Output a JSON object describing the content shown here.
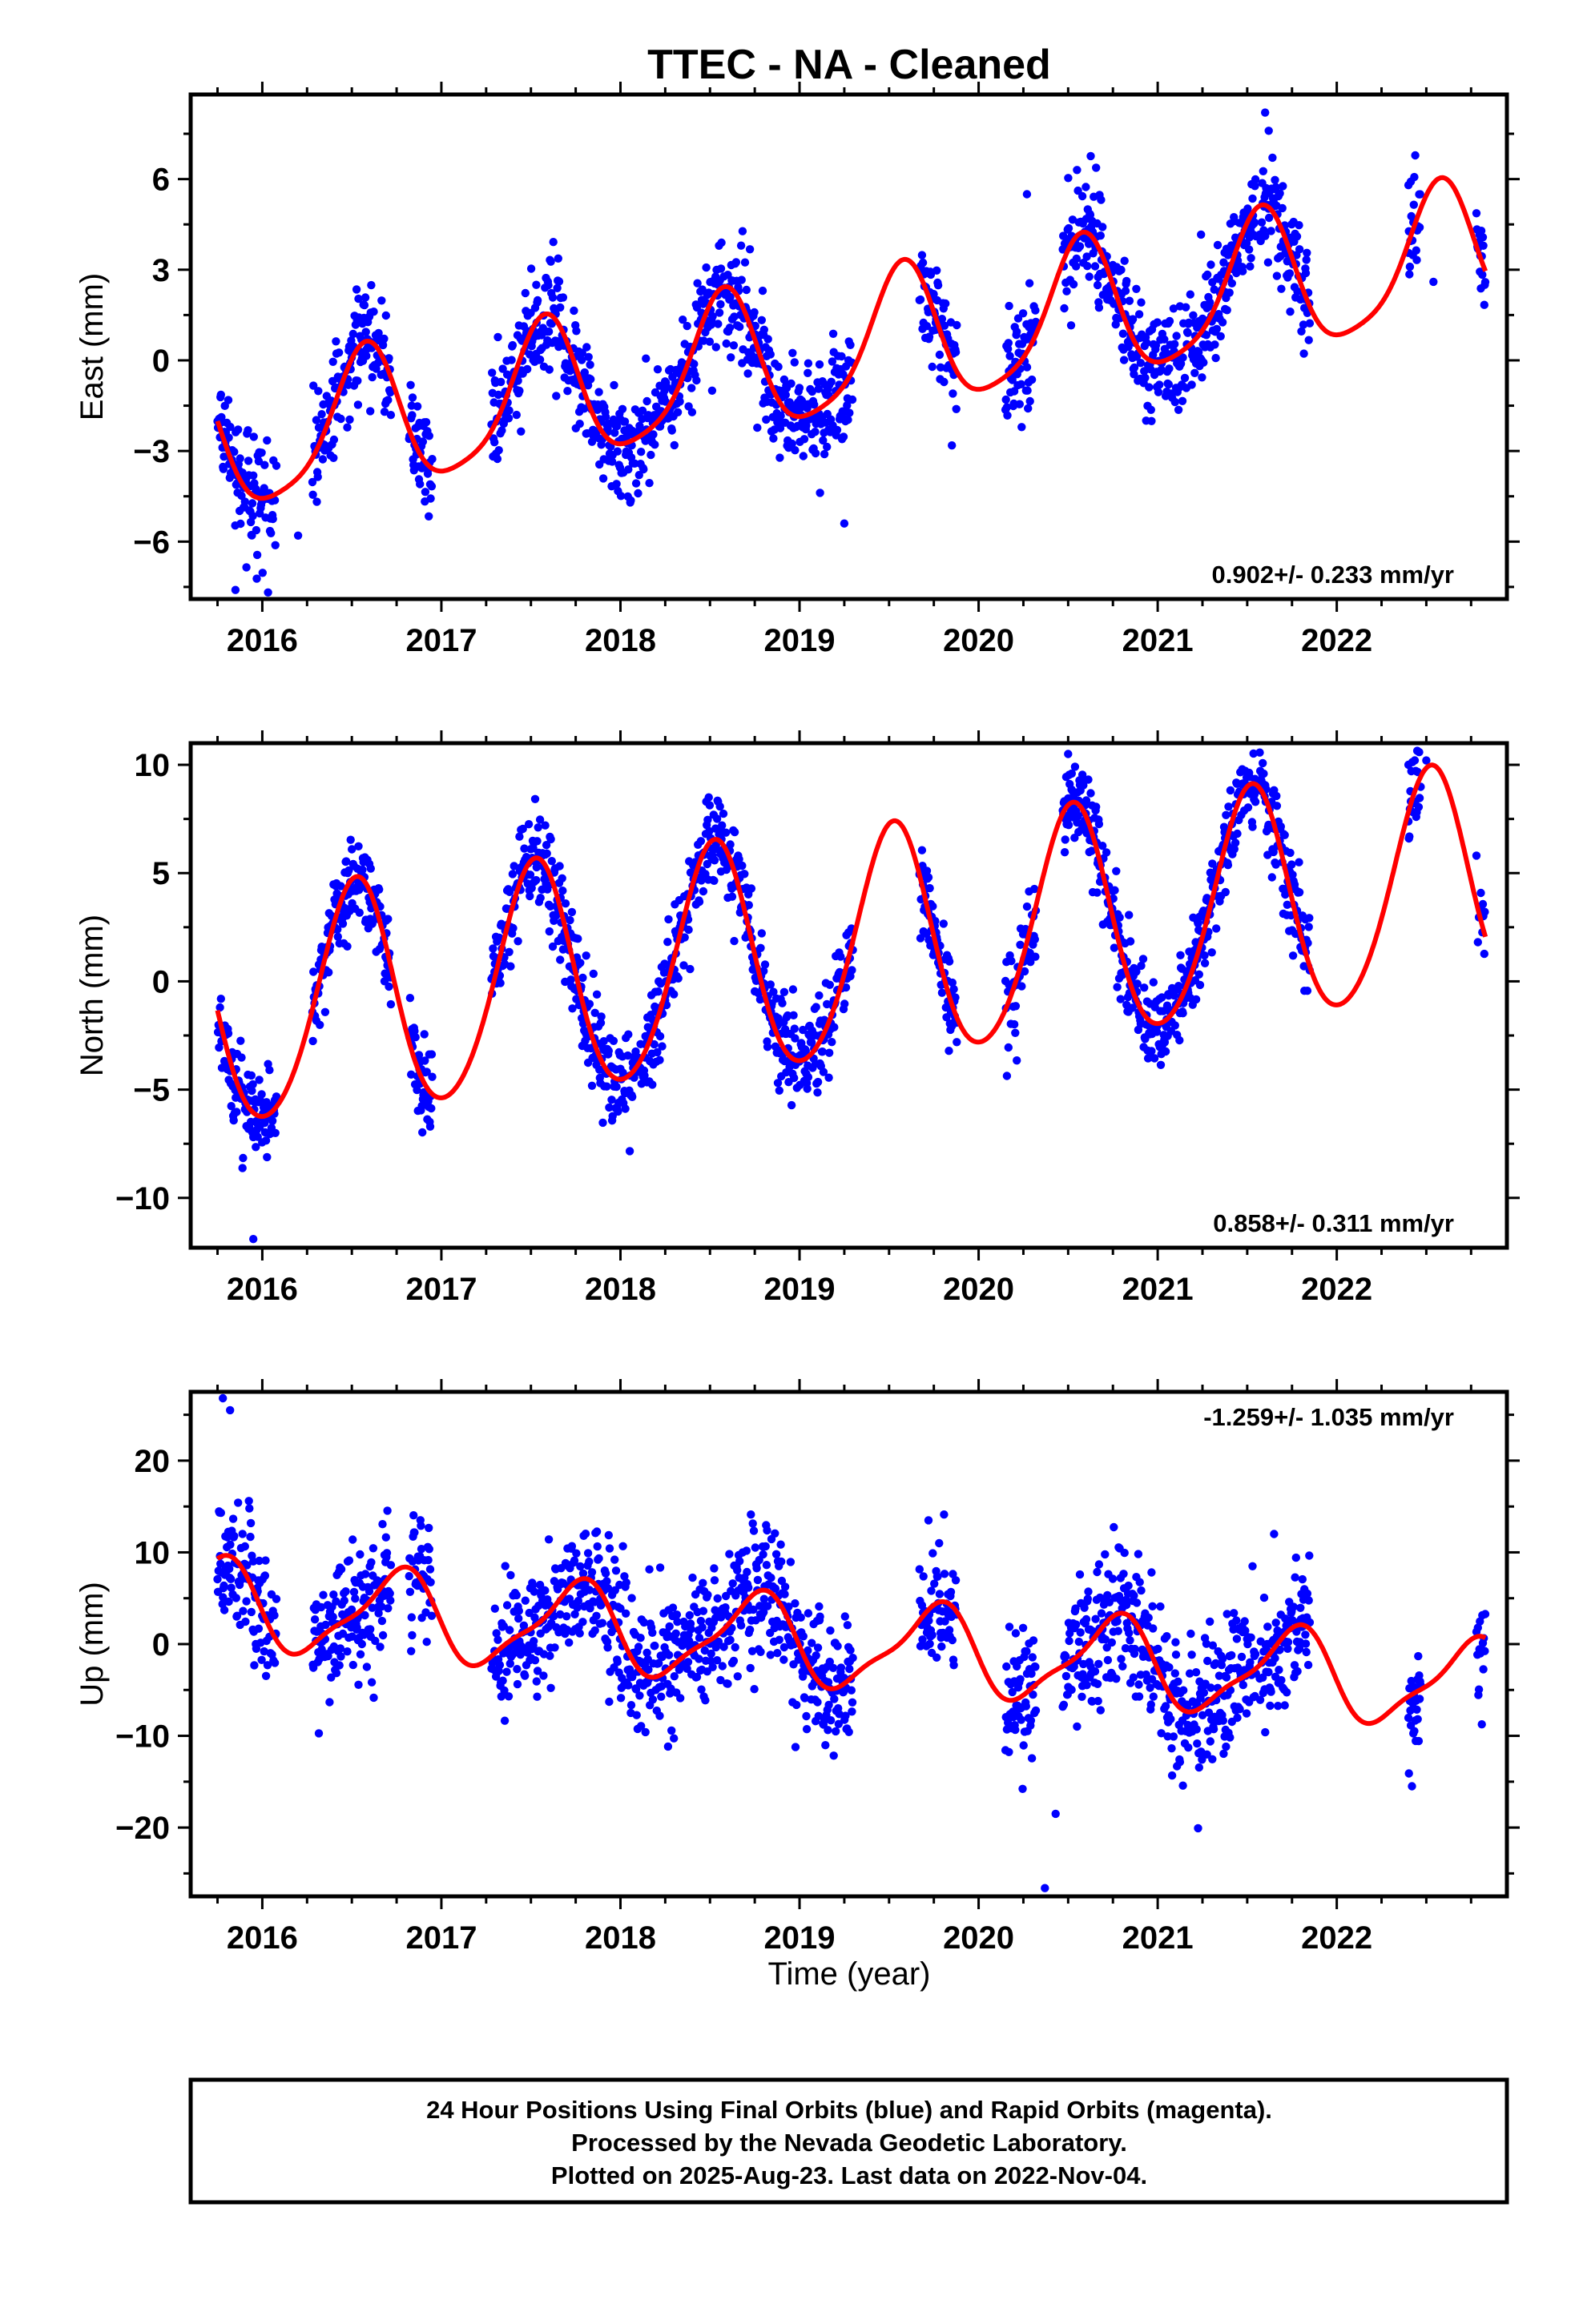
{
  "page": {
    "title": "TTEC  - NA - Cleaned",
    "footer": [
      "24 Hour Positions Using Final Orbits (blue) and Rapid Orbits (magenta).",
      "Processed by the Nevada Geodetic Laboratory.",
      "Plotted on 2025-Aug-23. Last data on 2022-Nov-04."
    ]
  },
  "colors": {
    "data_points": "#0000ff",
    "model_fit": "#ff0000",
    "frame": "#000000"
  },
  "chart_data": [
    {
      "type": "scatter",
      "name": "east-panel",
      "ylabel": "East (mm)",
      "xlabel": "",
      "xlim": [
        2015.6,
        2022.95
      ],
      "ylim": [
        -7.9,
        8.8
      ],
      "xticks": [
        2016,
        2017,
        2018,
        2019,
        2020,
        2021,
        2022
      ],
      "yticks": [
        -6,
        -3,
        0,
        3,
        6
      ],
      "rate_text": "0.902+/- 0.233 mm/yr",
      "rate_position": "bottom-right",
      "trend": {
        "t0": 2015.75,
        "y0": -2.85,
        "slope": 0.902
      },
      "seasonal": [
        {
          "period": 1.0,
          "amp": 2.3,
          "peak": 2016.57
        },
        {
          "period": 0.5,
          "amp": 0.45,
          "peak": 2016.6
        }
      ],
      "scatter_sd": 0.9,
      "data_segments": [
        [
          2015.75,
          2016.08
        ],
        [
          2016.28,
          2016.72
        ],
        [
          2016.82,
          2016.95
        ],
        [
          2017.28,
          2019.3
        ],
        [
          2019.67,
          2019.88
        ],
        [
          2020.15,
          2020.32
        ],
        [
          2020.47,
          2021.55
        ],
        [
          2021.57,
          2021.85
        ],
        [
          2022.4,
          2022.47
        ],
        [
          2022.78,
          2022.83
        ]
      ],
      "fit_range": [
        2015.75,
        2022.83
      ],
      "outliers": [
        [
          2016.2,
          -5.8
        ],
        [
          2015.85,
          -7.6
        ],
        [
          2017.53,
          2.5
        ],
        [
          2019.25,
          -5.4
        ],
        [
          2020.27,
          5.5
        ],
        [
          2020.17,
          1.8
        ],
        [
          2021.6,
          8.2
        ],
        [
          2021.62,
          7.6
        ],
        [
          2022.4,
          5.8
        ],
        [
          2022.54,
          2.6
        ]
      ]
    },
    {
      "type": "scatter",
      "name": "north-panel",
      "ylabel": "North (mm)",
      "xlabel": "",
      "xlim": [
        2015.6,
        2022.95
      ],
      "ylim": [
        -12.3,
        11.0
      ],
      "xticks": [
        2016,
        2017,
        2018,
        2019,
        2020,
        2021,
        2022
      ],
      "yticks": [
        -10,
        -5,
        0,
        5,
        10
      ],
      "rate_text": "0.858+/- 0.311 mm/yr",
      "rate_position": "bottom-right",
      "trend": {
        "t0": 2015.75,
        "y0": -1.6,
        "slope": 0.858
      },
      "seasonal": [
        {
          "period": 1.0,
          "amp": 5.3,
          "peak": 2016.52
        },
        {
          "period": 0.5,
          "amp": 0.5,
          "peak": 2016.55
        }
      ],
      "scatter_sd": 1.1,
      "data_segments": [
        [
          2015.75,
          2016.08
        ],
        [
          2016.28,
          2016.72
        ],
        [
          2016.82,
          2016.95
        ],
        [
          2017.28,
          2019.3
        ],
        [
          2019.67,
          2019.88
        ],
        [
          2020.15,
          2020.32
        ],
        [
          2020.47,
          2021.55
        ],
        [
          2021.57,
          2021.85
        ],
        [
          2022.4,
          2022.47
        ],
        [
          2022.78,
          2022.83
        ]
      ],
      "fit_range": [
        2015.75,
        2022.83
      ],
      "outliers": [
        [
          2015.95,
          -11.9
        ],
        [
          2020.5,
          10.5
        ],
        [
          2020.52,
          9.6
        ],
        [
          2022.4,
          10.0
        ],
        [
          2022.5,
          10.2
        ],
        [
          2016.5,
          6.1
        ],
        [
          2017.58,
          7.2
        ],
        [
          2019.72,
          4.8
        ]
      ]
    },
    {
      "type": "scatter",
      "name": "up-panel",
      "ylabel": "Up (mm)",
      "xlabel": "Time (year)",
      "xlim": [
        2015.6,
        2022.95
      ],
      "ylim": [
        -27.5,
        27.5
      ],
      "xticks": [
        2016,
        2017,
        2018,
        2019,
        2020,
        2021,
        2022
      ],
      "yticks": [
        -20,
        -10,
        0,
        10,
        20
      ],
      "rate_text": "-1.259+/- 1.035 mm/yr",
      "rate_position": "top-right",
      "trend": {
        "t0": 2015.75,
        "y0": 4.3,
        "slope": -1.259
      },
      "seasonal": [
        {
          "period": 1.0,
          "amp": 4.6,
          "peak": 2016.75
        },
        {
          "period": 0.5,
          "amp": 1.3,
          "peak": 2016.85
        }
      ],
      "scatter_sd": 3.6,
      "data_segments": [
        [
          2015.75,
          2016.08
        ],
        [
          2016.28,
          2016.72
        ],
        [
          2016.82,
          2016.95
        ],
        [
          2017.28,
          2019.3
        ],
        [
          2019.67,
          2019.88
        ],
        [
          2020.15,
          2020.32
        ],
        [
          2020.47,
          2021.55
        ],
        [
          2021.57,
          2021.85
        ],
        [
          2022.4,
          2022.47
        ],
        [
          2022.78,
          2022.83
        ]
      ],
      "fit_range": [
        2015.75,
        2022.83
      ],
      "outliers": [
        [
          2015.78,
          26.8
        ],
        [
          2015.82,
          25.5
        ],
        [
          2020.37,
          -26.6
        ],
        [
          2020.43,
          -18.5
        ],
        [
          2022.42,
          -15.5
        ],
        [
          2019.72,
          13.5
        ],
        [
          2021.65,
          12.0
        ]
      ]
    }
  ]
}
